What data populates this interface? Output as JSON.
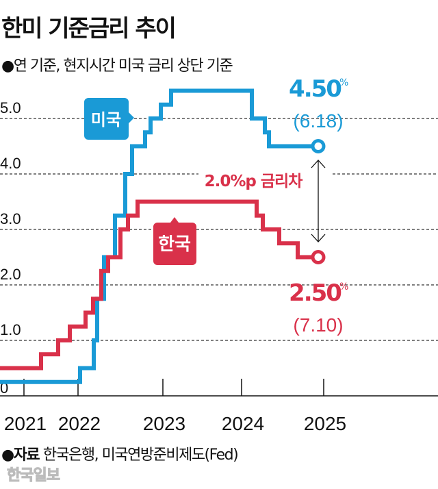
{
  "title": "한미 기준금리 추이",
  "subtitle": "●연 기준, 현지시간 미국 금리 상단 기준",
  "source_label": "●자료",
  "source_text": "한국은행, 미국연방준비제도(Fed)",
  "watermark": "한국일보",
  "chart_data": {
    "type": "line",
    "step": true,
    "title": "한미 기준금리 추이",
    "xlabel": "",
    "ylabel": "",
    "ylim": [
      0,
      5.5
    ],
    "yticks": [
      "0",
      "1.0",
      "2.0",
      "3.0",
      "4.0",
      "5.0"
    ],
    "ytick_values": [
      0,
      1,
      2,
      3,
      4,
      5
    ],
    "xticks": [
      "2021",
      "2022",
      "2023",
      "2024",
      "2025"
    ],
    "grid": "horizontal dashed",
    "series": [
      {
        "name": "미국",
        "color": "#1a9ad6",
        "points": [
          [
            "2021-01",
            0.25
          ],
          [
            "2022-03-16",
            0.5
          ],
          [
            "2022-05-04",
            1.0
          ],
          [
            "2022-06-15",
            1.75
          ],
          [
            "2022-07-27",
            2.5
          ],
          [
            "2022-09-21",
            3.25
          ],
          [
            "2022-11-02",
            4.0
          ],
          [
            "2022-12-14",
            4.5
          ],
          [
            "2023-02-01",
            4.75
          ],
          [
            "2023-03-22",
            5.0
          ],
          [
            "2023-05-03",
            5.25
          ],
          [
            "2023-07-26",
            5.5
          ],
          [
            "2024-09-18",
            5.0
          ],
          [
            "2024-11-07",
            4.75
          ],
          [
            "2024-12-18",
            4.5
          ],
          [
            "2025-06-18",
            4.5
          ]
        ],
        "end_value_label": "4.50",
        "end_unit": "%",
        "end_date_label": "(6.18)"
      },
      {
        "name": "한국",
        "color": "#d9314a",
        "points": [
          [
            "2021-01",
            0.5
          ],
          [
            "2021-08-26",
            0.75
          ],
          [
            "2021-11-25",
            1.0
          ],
          [
            "2022-01-14",
            1.25
          ],
          [
            "2022-04-14",
            1.5
          ],
          [
            "2022-05-26",
            1.75
          ],
          [
            "2022-07-13",
            2.25
          ],
          [
            "2022-08-25",
            2.5
          ],
          [
            "2022-10-12",
            3.0
          ],
          [
            "2022-11-24",
            3.25
          ],
          [
            "2023-01-13",
            3.5
          ],
          [
            "2024-10-11",
            3.25
          ],
          [
            "2024-11-28",
            3.0
          ],
          [
            "2025-02-25",
            2.75
          ],
          [
            "2025-05-29",
            2.5
          ],
          [
            "2025-07-10",
            2.5
          ]
        ],
        "end_value_label": "2.50",
        "end_unit": "%",
        "end_date_label": "(7.10)"
      }
    ],
    "annotations": [
      {
        "text": "2.0%p 금리차",
        "color": "#d9314a"
      }
    ]
  }
}
